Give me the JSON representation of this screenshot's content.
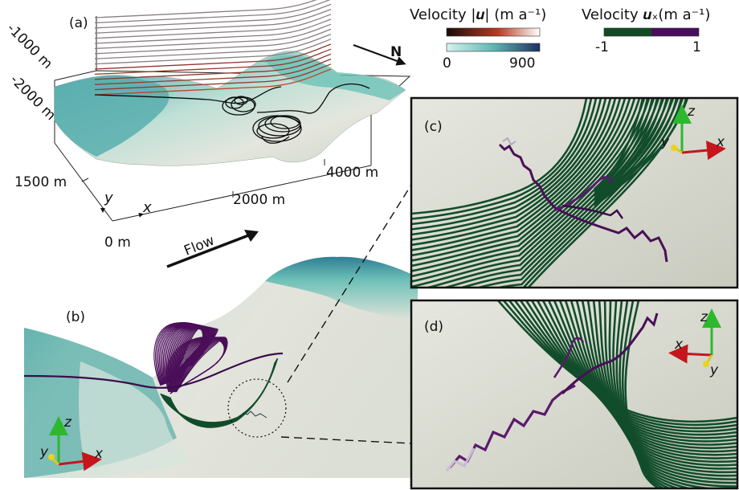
{
  "panels": {
    "a": {
      "label": "(a)"
    },
    "b": {
      "label": "(b)"
    },
    "c": {
      "label": "(c)"
    },
    "d": {
      "label": "(d)"
    }
  },
  "axes_a": {
    "z_ticks": [
      "-1000 m",
      "-2000 m"
    ],
    "y_ticks": [
      "1500 m"
    ],
    "x_ticks": [
      "0 m",
      "2000 m",
      "4000 m"
    ],
    "x_axis": "x",
    "y_axis": "y"
  },
  "north": {
    "label": "N"
  },
  "flow": {
    "label": "Flow"
  },
  "legend_mag": {
    "title": "Velocity |𝒖| (m a⁻¹)",
    "min": "0",
    "max": "900",
    "colors_dark": [
      "#1a0a08",
      "#b83a22",
      "#ffffff"
    ],
    "colors_light": [
      "#d6f3ef",
      "#5fb8b3",
      "#1f2f60"
    ]
  },
  "legend_ux": {
    "title": "Velocity 𝒖ₓ(m a⁻¹)",
    "min": "-1",
    "max": "1",
    "colors": [
      "#114a26",
      "#4a0d5e"
    ]
  },
  "triads": {
    "b": {
      "z": "z",
      "y": "y",
      "x": "x"
    },
    "c": {
      "z": "z",
      "y": "y",
      "x": "x"
    },
    "d": {
      "z": "z",
      "x": "x",
      "y": "y"
    }
  },
  "colors": {
    "terrain_light": "#d9dcd2",
    "terrain_teal": "#5fb3ac",
    "terrain_blue": "#2a6f8e",
    "streamline_green": "#124d2b",
    "streamline_purple": "#4b0e58",
    "panel_bg": "#d6d8cc"
  }
}
